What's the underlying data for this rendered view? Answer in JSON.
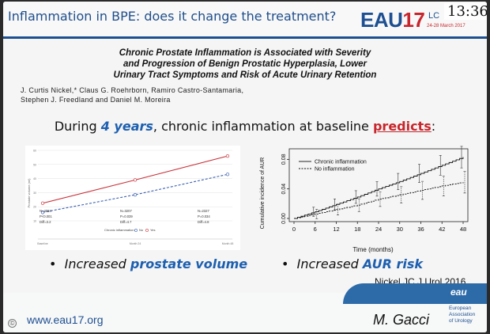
{
  "header": {
    "title": "Inflammation in BPE: does it change the treatment?",
    "logo_text": "EAU",
    "logo_year": "17",
    "logo_sub": "LC",
    "logo_dates": "24-28 March 2017",
    "clock": "13:36"
  },
  "paper": {
    "title_line1": "Chronic Prostate Inflammation is Associated with Severity",
    "title_line2": "and Progression of Benign Prostatic Hyperplasia, Lower",
    "title_line3": "Urinary Tract Symptoms and Risk of Acute Urinary Retention",
    "authors_line1": "J. Curtis Nickel,* Claus G. Roehrborn, Ramiro Castro-Santamaria,",
    "authors_line2": "Stephen J. Freedland and Daniel M. Moreira"
  },
  "statement": {
    "prefix": "During ",
    "highlight_years": "4 years",
    "middle": ", chronic inflammation at baseline ",
    "highlight_verb": "predicts",
    "suffix": ":"
  },
  "chart_data": [
    {
      "type": "line",
      "ylabel": "Prostate volume (ml)",
      "x": [
        "Baseline",
        "Month 24",
        "Month 48"
      ],
      "legend_title": "Chronic inflammation",
      "legend": [
        "No",
        "Yes"
      ],
      "series": [
        {
          "name": "Yes",
          "color": "#c8323a",
          "values": [
            0.25,
            0.58,
            0.92
          ]
        },
        {
          "name": "No",
          "color": "#3a5fb0",
          "values": [
            0.12,
            0.37,
            0.66
          ]
        }
      ],
      "annotations": [
        [
          "N=4084",
          "P<0.001",
          "Diff=3.2"
        ],
        [
          "N=3207",
          "P=0.039",
          "Diff=4.7"
        ],
        [
          "N=2327",
          "P=0.034",
          "Diff=4.8"
        ]
      ],
      "ytick_labels": [
        "60",
        "50",
        "40",
        "30",
        "20",
        "10"
      ]
    },
    {
      "type": "line",
      "ylabel": "Cumulative incidence of AUR",
      "xlabel": "Time (months)",
      "x": [
        0,
        6,
        12,
        18,
        24,
        30,
        36,
        42,
        48
      ],
      "yticks": [
        "0.00",
        "0.04",
        "0.08"
      ],
      "ylim": [
        0,
        0.09
      ],
      "legend": [
        "Chronic inflammation",
        "No inflammation"
      ],
      "series": [
        {
          "name": "Chronic inflammation",
          "values": [
            0.0,
            0.009,
            0.019,
            0.029,
            0.04,
            0.05,
            0.061,
            0.072,
            0.083
          ]
        },
        {
          "name": "No inflammation",
          "values": [
            0.0,
            0.006,
            0.012,
            0.018,
            0.026,
            0.032,
            0.038,
            0.044,
            0.049
          ]
        }
      ]
    }
  ],
  "bullets": {
    "left_prefix": "Increased ",
    "left_highlight": "prostate volume",
    "right_prefix": "Increased ",
    "right_highlight": "AUR risk"
  },
  "citation": "Nickel JC  J Urol 2016",
  "footer": {
    "url": "www.eau17.org",
    "speaker": "M. Gacci",
    "eau_mark": "eau",
    "assoc_line1": "European",
    "assoc_line2": "Association",
    "assoc_line3": "of Urology",
    "copyright": "©"
  }
}
